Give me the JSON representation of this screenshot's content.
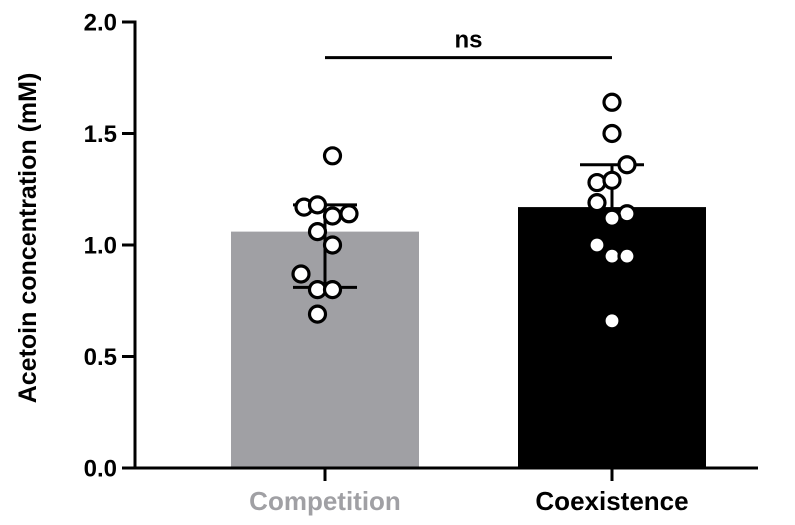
{
  "chart_data": {
    "type": "bar",
    "title": "",
    "xlabel": "",
    "ylabel": "Acetoin concentration (mM)",
    "ylim": [
      0,
      2.0
    ],
    "yticks": [
      0.0,
      0.5,
      1.0,
      1.5,
      2.0
    ],
    "ytick_labels": [
      "0.0",
      "0.5",
      "1.0",
      "1.5",
      "2.0"
    ],
    "grid": false,
    "categories": [
      "Competition",
      "Coexistence"
    ],
    "values": [
      1.06,
      1.17
    ],
    "error_bars": [
      {
        "low": 0.81,
        "high": 1.18
      },
      {
        "low": 0.99,
        "high": 1.36
      }
    ],
    "colors": {
      "bars": [
        "#a0a0a4",
        "#000000"
      ],
      "category_labels": [
        "#a0a0a4",
        "#000000"
      ],
      "axis": "#000000"
    },
    "points": [
      [
        {
          "dx": -1.4,
          "y": 1.17
        },
        {
          "dx": -0.5,
          "y": 1.18
        },
        {
          "dx": 0.5,
          "y": 1.13
        },
        {
          "dx": 1.6,
          "y": 1.14
        },
        {
          "dx": -0.5,
          "y": 1.06
        },
        {
          "dx": 0.5,
          "y": 1.0
        },
        {
          "dx": -1.6,
          "y": 0.87
        },
        {
          "dx": -0.5,
          "y": 0.8
        },
        {
          "dx": 0.5,
          "y": 0.8
        },
        {
          "dx": -0.5,
          "y": 0.69
        },
        {
          "dx": 0.5,
          "y": 1.4
        }
      ],
      [
        {
          "dx": 0.0,
          "y": 1.64
        },
        {
          "dx": 0.0,
          "y": 1.5
        },
        {
          "dx": 1.0,
          "y": 1.36
        },
        {
          "dx": -1.0,
          "y": 1.28
        },
        {
          "dx": 0.0,
          "y": 1.29
        },
        {
          "dx": -1.0,
          "y": 1.19
        },
        {
          "dx": 1.0,
          "y": 1.14
        },
        {
          "dx": 0.0,
          "y": 1.12
        },
        {
          "dx": -1.0,
          "y": 1.0
        },
        {
          "dx": 0.0,
          "y": 0.95
        },
        {
          "dx": 1.0,
          "y": 0.95
        },
        {
          "dx": 0.0,
          "y": 0.66
        }
      ]
    ],
    "significance": {
      "label": "ns",
      "between": [
        "Competition",
        "Coexistence"
      ],
      "y": 1.84
    }
  }
}
